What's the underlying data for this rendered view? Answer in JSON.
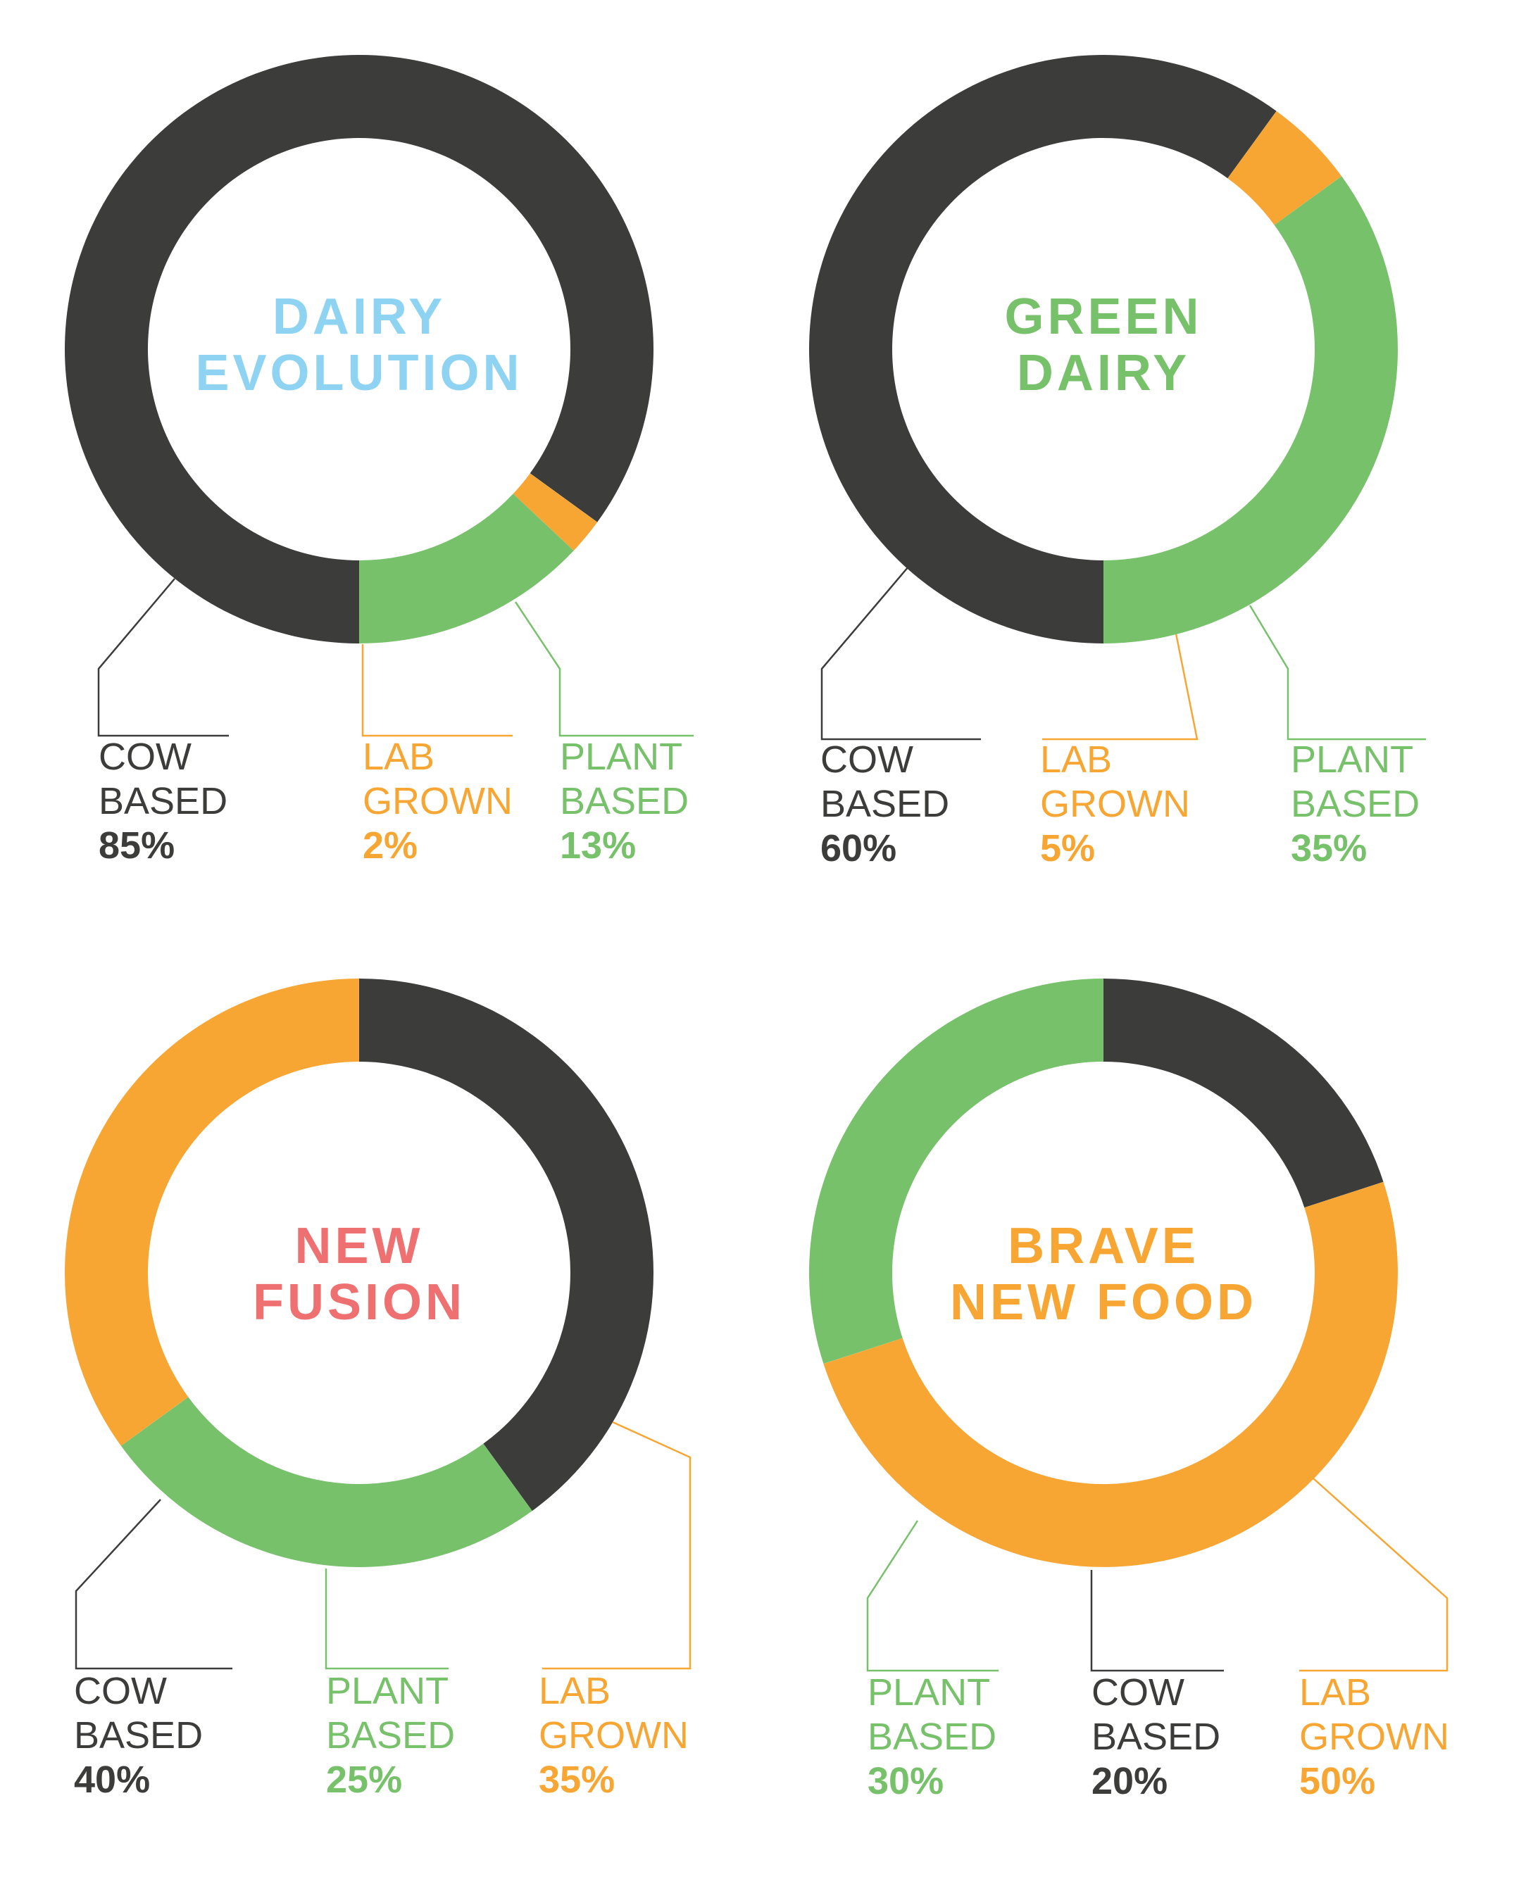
{
  "colors": {
    "cow": "#3c3c3b",
    "lab": "#f7a634",
    "plant": "#77c16b",
    "title_dairy_evolution": "#8fd3f3",
    "title_green_dairy": "#77c16b",
    "title_new_fusion": "#ee7070",
    "title_brave_new_food": "#f7a634"
  },
  "chart_data": [
    {
      "type": "pie",
      "donut": true,
      "title": [
        "DAIRY",
        "EVOLUTION"
      ],
      "slices": [
        {
          "key": "cow",
          "label": [
            "COW",
            "BASED"
          ],
          "value": 85,
          "value_label": "85%"
        },
        {
          "key": "lab",
          "label": [
            "LAB",
            "GROWN"
          ],
          "value": 2,
          "value_label": "2%"
        },
        {
          "key": "plant",
          "label": [
            "PLANT",
            "BASED"
          ],
          "value": 13,
          "value_label": "13%"
        }
      ]
    },
    {
      "type": "pie",
      "donut": true,
      "title": [
        "GREEN",
        "DAIRY"
      ],
      "slices": [
        {
          "key": "cow",
          "label": [
            "COW",
            "BASED"
          ],
          "value": 60,
          "value_label": "60%"
        },
        {
          "key": "lab",
          "label": [
            "LAB",
            "GROWN"
          ],
          "value": 5,
          "value_label": "5%"
        },
        {
          "key": "plant",
          "label": [
            "PLANT",
            "BASED"
          ],
          "value": 35,
          "value_label": "35%"
        }
      ]
    },
    {
      "type": "pie",
      "donut": true,
      "title": [
        "NEW",
        "FUSION"
      ],
      "slices": [
        {
          "key": "cow",
          "label": [
            "COW",
            "BASED"
          ],
          "value": 40,
          "value_label": "40%"
        },
        {
          "key": "plant",
          "label": [
            "PLANT",
            "BASED"
          ],
          "value": 25,
          "value_label": "25%"
        },
        {
          "key": "lab",
          "label": [
            "LAB",
            "GROWN"
          ],
          "value": 35,
          "value_label": "35%"
        }
      ]
    },
    {
      "type": "pie",
      "donut": true,
      "title": [
        "BRAVE",
        "NEW FOOD"
      ],
      "slices": [
        {
          "key": "plant",
          "label": [
            "PLANT",
            "BASED"
          ],
          "value": 30,
          "value_label": "30%"
        },
        {
          "key": "cow",
          "label": [
            "COW",
            "BASED"
          ],
          "value": 20,
          "value_label": "20%"
        },
        {
          "key": "lab",
          "label": [
            "LAB",
            "GROWN"
          ],
          "value": 50,
          "value_label": "50%"
        }
      ]
    }
  ]
}
